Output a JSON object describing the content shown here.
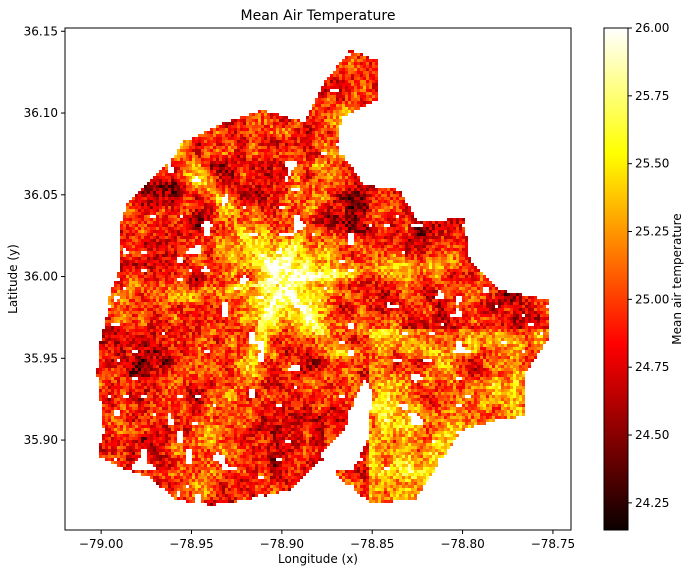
{
  "chart_data": {
    "type": "heatmap",
    "title": "Mean Air Temperature",
    "xlabel": "Longitude (x)",
    "ylabel": "Latitude (y)",
    "xlim": [
      -79.02,
      -78.74
    ],
    "ylim": [
      35.845,
      36.152
    ],
    "xticks": [
      -79.0,
      -78.95,
      -78.9,
      -78.85,
      -78.8,
      -78.75
    ],
    "xtick_labels": [
      "−79.00",
      "−78.95",
      "−78.90",
      "−78.85",
      "−78.80",
      "−78.75"
    ],
    "yticks": [
      35.9,
      35.95,
      36.0,
      36.05,
      36.1,
      36.15
    ],
    "ytick_labels": [
      "35.90",
      "35.95",
      "36.00",
      "36.05",
      "36.10",
      "36.15"
    ],
    "colorbar": {
      "label": "Mean air temperature",
      "min": 24.15,
      "max": 26.0,
      "colormap": "hot",
      "ticks": [
        24.25,
        24.5,
        24.75,
        25.0,
        25.25,
        25.5,
        25.75,
        26.0
      ],
      "tick_labels": [
        "24.25",
        "24.50",
        "24.75",
        "25.00",
        "25.25",
        "25.50",
        "25.75",
        "26.00"
      ]
    },
    "grid": false,
    "masked_region_description": "irregular city footprint; cells outside the footprint are blank",
    "urban_core_center": {
      "lon": -78.9,
      "lat": 35.997
    },
    "approx_values": {
      "urban_core": 25.8,
      "suburban_typical": 24.9,
      "wooded_typical": 24.4
    }
  }
}
